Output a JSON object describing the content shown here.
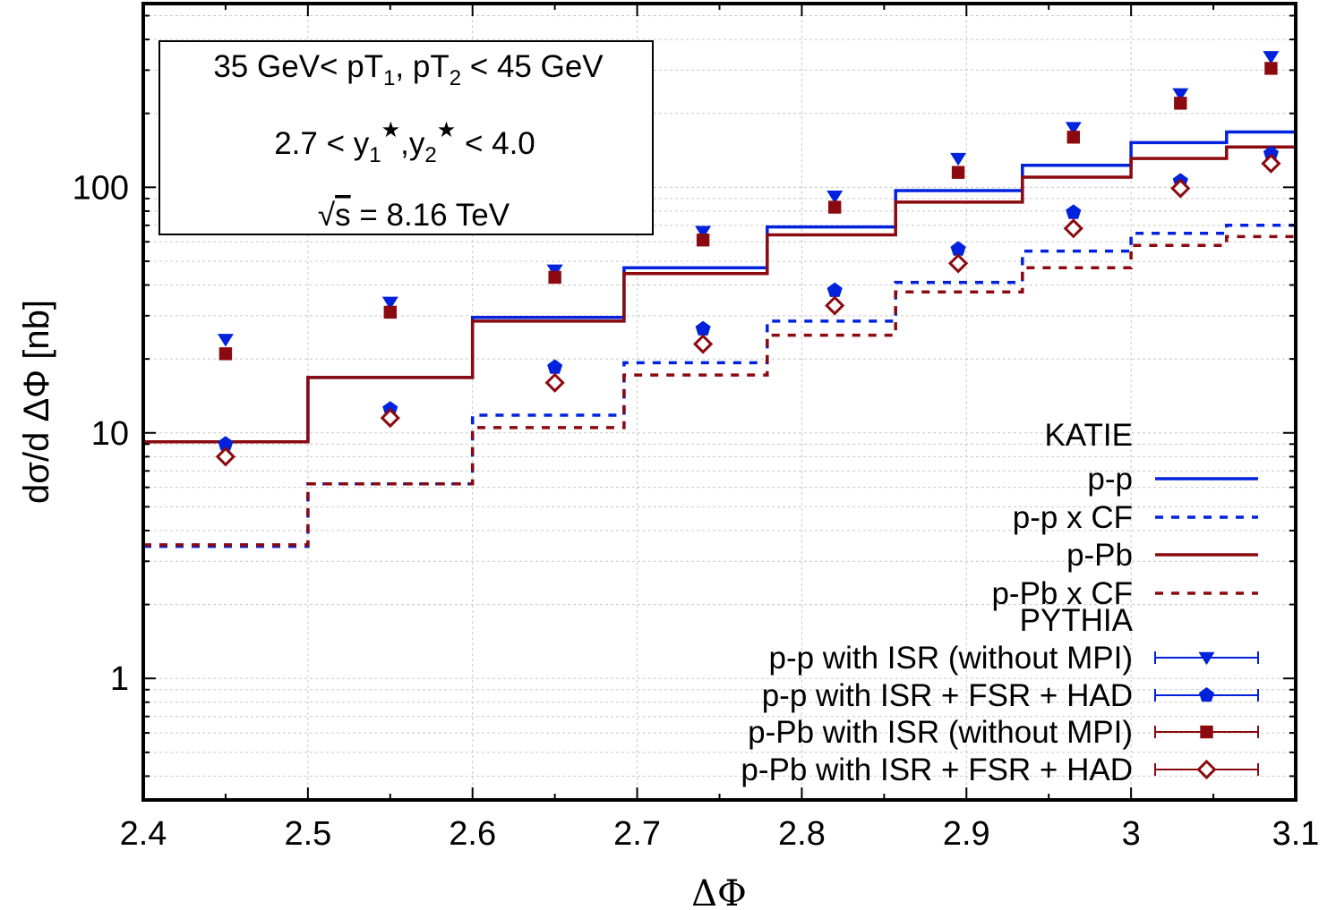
{
  "chart_data": {
    "type": "line",
    "title": "",
    "xlabel": "ΔΦ",
    "ylabel": "dσ/d ΔΦ [nb]",
    "xlim": [
      2.4,
      3.1
    ],
    "ylim": [
      0.32,
      560
    ],
    "yscale": "log",
    "grid": true,
    "x_ticks": [
      {
        "v": 2.4,
        "label": "2.4"
      },
      {
        "v": 2.5,
        "label": "2.5"
      },
      {
        "v": 2.6,
        "label": "2.6"
      },
      {
        "v": 2.7,
        "label": "2.7"
      },
      {
        "v": 2.8,
        "label": "2.8"
      },
      {
        "v": 2.9,
        "label": "2.9"
      },
      {
        "v": 3.0,
        "label": "3"
      },
      {
        "v": 3.1,
        "label": "3.1"
      }
    ],
    "y_ticks": [
      {
        "v": 1,
        "label": "1"
      },
      {
        "v": 10,
        "label": "10"
      },
      {
        "v": 100,
        "label": "100"
      }
    ],
    "bin_edges": [
      2.4,
      2.5,
      2.6,
      2.692,
      2.779,
      2.857,
      2.934,
      3.0,
      3.058,
      3.1
    ],
    "annotation": {
      "line1_pre": "35 GeV< pT",
      "line1_sub1": "1",
      "line1_mid": ", pT",
      "line1_sub2": "2",
      "line1_post": " < 45 GeV",
      "line2_pre": "2.7 < y",
      "line2_sub1": "1",
      "line2_sup1": "★",
      "line2_mid": ",y",
      "line2_sub2": "2",
      "line2_sup2": "★",
      "line2_post": " < 4.0",
      "line3_root": "√",
      "line3_s": "s",
      "line3_post": " = 8.16 TeV"
    },
    "legend": {
      "group1": "KATIE",
      "group2": "PYTHIA",
      "position": "bottom-right"
    },
    "histograms": [
      {
        "name": "p-p",
        "color": "#0022dd",
        "style": "solid",
        "values": [
          9.2,
          16.8,
          29.5,
          47.0,
          69.0,
          97.0,
          123.0,
          152.0,
          168.0
        ]
      },
      {
        "name": "p-p x CF",
        "color": "#0022dd",
        "style": "dashed",
        "values": [
          3.45,
          6.2,
          11.8,
          19.3,
          28.5,
          41.0,
          55.0,
          65.0,
          70.0
        ]
      },
      {
        "name": "p-Pb",
        "color": "#8b0a0f",
        "style": "solid",
        "values": [
          9.2,
          16.8,
          28.5,
          44.5,
          64.0,
          87.0,
          110.0,
          131.0,
          146.0
        ]
      },
      {
        "name": "p-Pb x CF",
        "color": "#8b0a0f",
        "style": "dashed",
        "values": [
          3.5,
          6.2,
          10.5,
          17.2,
          25.0,
          37.5,
          47.0,
          58.0,
          63.0
        ]
      }
    ],
    "points": [
      {
        "name": "p-p with ISR (without MPI)",
        "color": "#0022dd",
        "marker": "triangle-down",
        "x": [
          2.45,
          2.55,
          2.65,
          2.74,
          2.82,
          2.895,
          2.965,
          3.03,
          3.085
        ],
        "y": [
          24.0,
          34.0,
          46.0,
          66.0,
          92.0,
          131.0,
          175.0,
          240.0,
          340.0
        ]
      },
      {
        "name": "p-p with ISR + FSR + HAD",
        "color": "#0022dd",
        "marker": "pentagon",
        "x": [
          2.45,
          2.55,
          2.65,
          2.74,
          2.82,
          2.895,
          2.965,
          3.03,
          3.085
        ],
        "y": [
          9.0,
          12.5,
          18.5,
          26.5,
          38.0,
          56.0,
          79.0,
          106.0,
          137.0
        ]
      },
      {
        "name": "p-Pb with ISR (without MPI)",
        "color": "#8b0a0f",
        "marker": "square",
        "x": [
          2.45,
          2.55,
          2.65,
          2.74,
          2.82,
          2.895,
          2.965,
          3.03,
          3.085
        ],
        "y": [
          21.0,
          31.0,
          43.0,
          61.0,
          83.0,
          115.0,
          160.0,
          220.0,
          305.0
        ]
      },
      {
        "name": "p-Pb with ISR + FSR + HAD",
        "color": "#8b0a0f",
        "marker": "diamond-open",
        "x": [
          2.45,
          2.55,
          2.65,
          2.74,
          2.82,
          2.895,
          2.965,
          3.03,
          3.085
        ],
        "y": [
          8.0,
          11.5,
          16.0,
          23.0,
          33.0,
          49.0,
          68.0,
          99.0,
          125.0
        ]
      }
    ]
  }
}
